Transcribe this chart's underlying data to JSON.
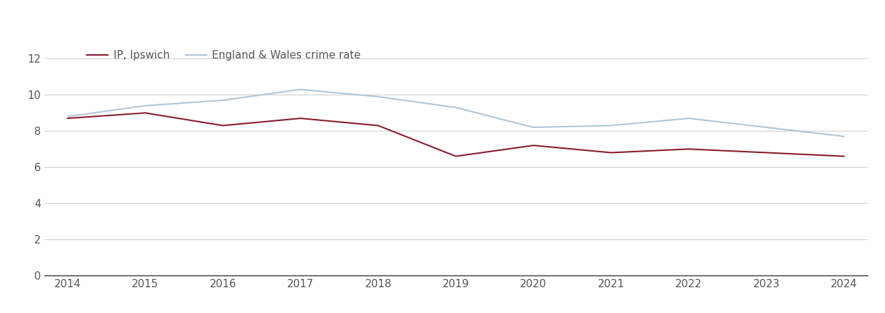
{
  "years": [
    2014,
    2015,
    2016,
    2017,
    2018,
    2019,
    2020,
    2021,
    2022,
    2023,
    2024
  ],
  "ipswich": [
    8.7,
    9.0,
    8.3,
    8.7,
    8.3,
    6.6,
    7.2,
    6.8,
    7.0,
    6.8,
    6.6
  ],
  "england_wales": [
    8.8,
    9.4,
    9.7,
    10.3,
    9.9,
    9.3,
    8.2,
    8.3,
    8.7,
    8.2,
    7.7
  ],
  "ipswich_color": "#8B1A2B",
  "england_wales_color": "#aec6d8",
  "ipswich_label": "IP, Ipswich",
  "england_wales_label": "England & Wales crime rate",
  "ylim": [
    0,
    13
  ],
  "yticks": [
    0,
    2,
    4,
    6,
    8,
    10,
    12
  ],
  "xlim": [
    2013.7,
    2024.3
  ],
  "background_color": "#ffffff",
  "grid_color": "#d0d0d0",
  "line_width": 1.5,
  "legend_fontsize": 11,
  "tick_fontsize": 11,
  "tick_color": "#555555"
}
